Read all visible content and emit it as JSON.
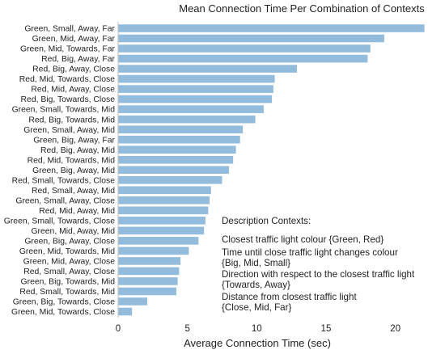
{
  "chart_data": {
    "type": "bar",
    "orientation": "horizontal",
    "title": "Mean Connection Time Per Combination of Contexts",
    "xlabel": "Average Connection Time (sec)",
    "ylabel": "",
    "xlim": [
      0,
      23
    ],
    "x_ticks": [
      0,
      5,
      10,
      15,
      20
    ],
    "grid": false,
    "bar_color": "#93bcdc",
    "categories": [
      "Green, Small, Away, Far",
      "Green, Mid, Away, Far",
      "Green, Mid, Towards, Far",
      "Red, Big, Away, Far",
      "Red, Big, Away, Close",
      "Red, Mid, Towards, Close",
      "Red, Mid, Away, Close",
      "Red, Big, Towards, Close",
      "Green, Small, Towards, Mid",
      "Red, Big, Towards, Mid",
      "Green, Small, Away, Mid",
      "Green, Big, Away, Far",
      "Red, Big, Away, Mid",
      "Red, Mid, Towards, Mid",
      "Green, Big, Away, Mid",
      "Red, Small, Towards, Close",
      "Red, Small, Away, Mid",
      "Green, Small, Away, Close",
      "Red, Mid, Away, Mid",
      "Green, Small, Towards, Close",
      "Green, Mid, Away, Mid",
      "Green, Big, Away, Close",
      "Green, Mid, Towards, Mid",
      "Green, Mid, Away, Close",
      "Red, Small, Away, Close",
      "Green, Big, Towards, Mid",
      "Red, Small, Towards, Mid",
      "Green, Big, Towards, Close",
      "Green, Mid, Towards, Close"
    ],
    "values": [
      22.1,
      19.2,
      18.2,
      18.0,
      12.9,
      11.3,
      11.2,
      11.1,
      10.5,
      9.9,
      9.0,
      8.8,
      8.5,
      8.3,
      8.0,
      7.5,
      6.7,
      6.6,
      6.5,
      6.3,
      6.2,
      5.8,
      5.1,
      4.5,
      4.4,
      4.3,
      4.2,
      2.1,
      1.0
    ],
    "annotations": [
      "Description Contexts:",
      "Closest traffic light colour {Green, Red}",
      "Time until close traffic light changes colour",
      "{Big, Mid, Small}",
      "Direction with respect to the closest traffic light",
      "{Towards, Away}",
      "Distance from closest traffic light",
      "{Close, Mid, Far}"
    ]
  }
}
